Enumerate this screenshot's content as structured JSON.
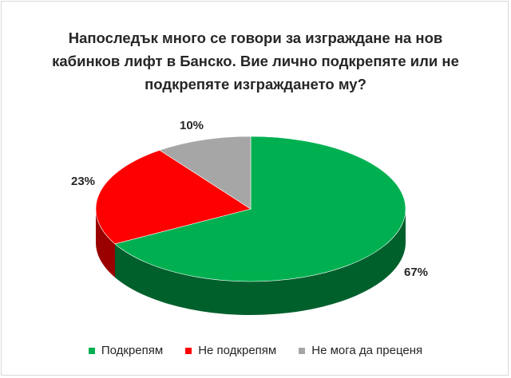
{
  "chart_data": {
    "type": "pie",
    "title_lines": [
      "Напоследък много се говори за изграждане на нов",
      "кабинков лифт в Банско. Вие лично подкрепяте или не",
      "подкрепяте изграждането му?"
    ],
    "categories": [
      "Подкрепям",
      "Не подкрепям",
      "Не мога да преценя"
    ],
    "values": [
      67,
      23,
      10
    ],
    "labels": [
      "67%",
      "23%",
      "10%"
    ],
    "colors": [
      "#00b050",
      "#ff0000",
      "#a6a6a6"
    ],
    "side_colors": [
      "#00602c",
      "#9a0000",
      "#666666"
    ],
    "legend_position": "bottom",
    "style": "3d"
  }
}
